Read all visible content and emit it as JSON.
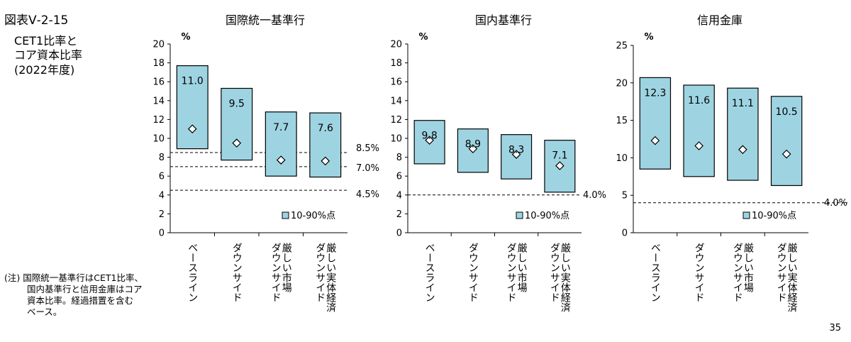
{
  "figure": {
    "title": "図表Ⅴ-2-15",
    "subtitle_lines": [
      "CET1比率と",
      "コア資本比率",
      "(2022年度)"
    ]
  },
  "note": {
    "lines": [
      "(注)  国際統一基準行はCET1比率、",
      "国内基準行と信用金庫はコア",
      "資本比率。経過措置を含む",
      "ベース。"
    ]
  },
  "page_number": "35",
  "chart_data": [
    {
      "type": "bar",
      "title": "国際統一基準行",
      "ylabel": "%",
      "ylim": [
        0,
        20
      ],
      "yticks": [
        0,
        2,
        4,
        6,
        8,
        10,
        12,
        14,
        16,
        18,
        20
      ],
      "categories": [
        "ベースライン",
        "ダウンサイド",
        "厳しい市場\nダウンサイド",
        "厳しい実体経済\nダウンサイド"
      ],
      "range_low": [
        8.9,
        7.7,
        6.0,
        5.9
      ],
      "range_high": [
        17.7,
        15.3,
        12.8,
        12.7
      ],
      "median": [
        11.0,
        9.5,
        7.7,
        7.6
      ],
      "median_labels": [
        "11.0",
        "9.5",
        "7.7",
        "7.6"
      ],
      "reference_lines": [
        {
          "value": 8.5,
          "label": "8.5%"
        },
        {
          "value": 7.0,
          "label": "7.0%"
        },
        {
          "value": 4.5,
          "label": "4.5%"
        }
      ],
      "legend": "10-90%点",
      "color": "#9ed4e2"
    },
    {
      "type": "bar",
      "title": "国内基準行",
      "ylabel": "%",
      "ylim": [
        0,
        20
      ],
      "yticks": [
        0,
        2,
        4,
        6,
        8,
        10,
        12,
        14,
        16,
        18,
        20
      ],
      "categories": [
        "ベースライン",
        "ダウンサイド",
        "厳しい市場\nダウンサイド",
        "厳しい実体経済\nダウンサイド"
      ],
      "range_low": [
        7.3,
        6.4,
        5.7,
        4.3
      ],
      "range_high": [
        11.9,
        11.0,
        10.4,
        9.8
      ],
      "median": [
        9.8,
        8.9,
        8.3,
        7.1
      ],
      "median_labels": [
        "9.8",
        "8.9",
        "8.3",
        "7.1"
      ],
      "reference_lines": [
        {
          "value": 4.0,
          "label": "4.0%"
        }
      ],
      "legend": "10-90%点",
      "color": "#9ed4e2"
    },
    {
      "type": "bar",
      "title": "信用金庫",
      "ylabel": "%",
      "ylim": [
        0,
        25
      ],
      "yticks": [
        0,
        5,
        10,
        15,
        20,
        25
      ],
      "categories": [
        "ベースライン",
        "ダウンサイド",
        "厳しい市場\nダウンサイド",
        "厳しい実体経済\nダウンサイド"
      ],
      "range_low": [
        8.5,
        7.5,
        7.0,
        6.3
      ],
      "range_high": [
        20.7,
        19.7,
        19.3,
        18.2
      ],
      "median": [
        12.3,
        11.6,
        11.1,
        10.5
      ],
      "median_labels": [
        "12.3",
        "11.6",
        "11.1",
        "10.5"
      ],
      "reference_lines": [
        {
          "value": 4.0,
          "label": "4.0%"
        }
      ],
      "legend": "10-90%点",
      "color": "#9ed4e2"
    }
  ]
}
